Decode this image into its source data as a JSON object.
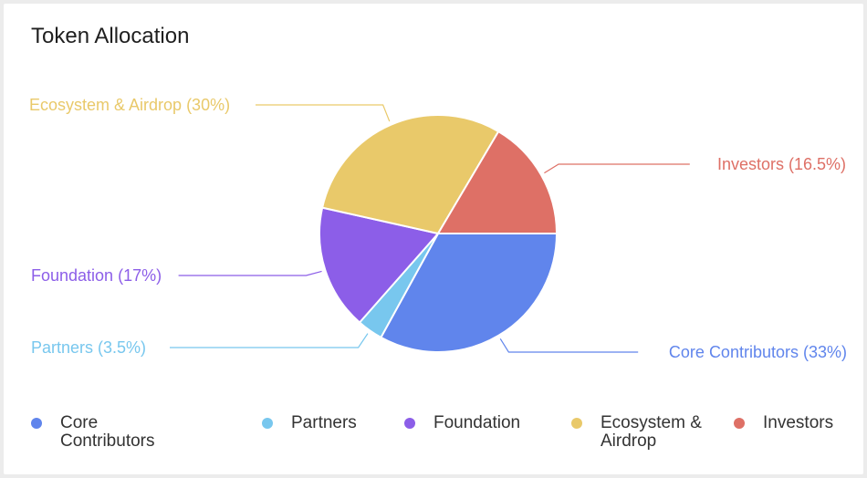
{
  "header": {
    "title": "Token Allocation"
  },
  "chart_data": {
    "type": "pie",
    "title": "Token Allocation",
    "slices": [
      {
        "label": "Core Contributors",
        "value": 33,
        "color": "#6085ec",
        "callout": "Core Contributors (33%)"
      },
      {
        "label": "Partners",
        "value": 3.5,
        "color": "#78c7ee",
        "callout": "Partners (3.5%)"
      },
      {
        "label": "Foundation",
        "value": 17,
        "color": "#8c5ee8",
        "callout": "Foundation (17%)"
      },
      {
        "label": "Ecosystem & Airdrop",
        "value": 30,
        "color": "#e9c96a",
        "callout": "Ecosystem & Airdrop (30%)"
      },
      {
        "label": "Investors",
        "value": 16.5,
        "color": "#de7066",
        "callout": "Investors (16.5%)"
      }
    ],
    "legend": {
      "placement": "bottom"
    }
  },
  "legend": {
    "items": [
      {
        "label": "Core Contributors",
        "color": "#6085ec"
      },
      {
        "label": "Partners",
        "color": "#78c7ee"
      },
      {
        "label": "Foundation",
        "color": "#8c5ee8"
      },
      {
        "label": "Ecosystem & Airdrop",
        "color": "#e9c96a"
      },
      {
        "label": "Investors",
        "color": "#de7066"
      }
    ]
  }
}
